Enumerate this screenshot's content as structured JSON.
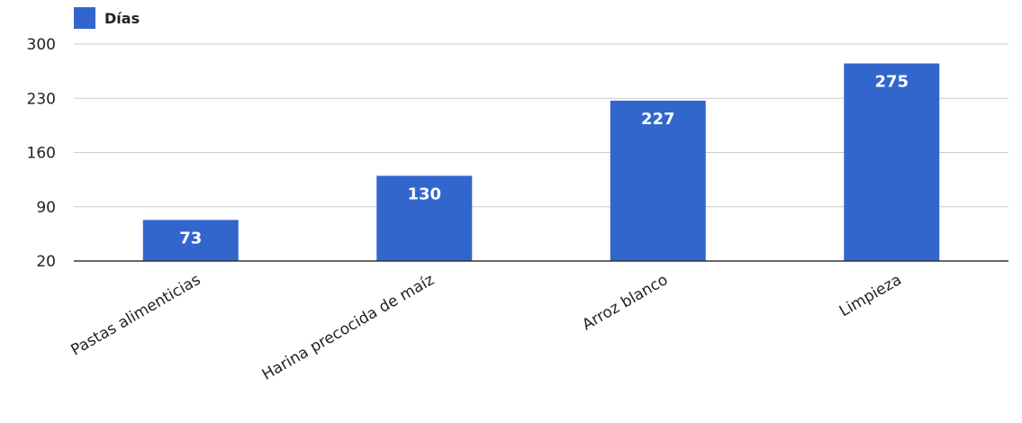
{
  "chart_data": {
    "type": "bar",
    "categories": [
      "Pastas alimenticias",
      "Harina precocida de maíz",
      "Arroz blanco",
      "Limpieza"
    ],
    "series": [
      {
        "name": "Días",
        "values": [
          73,
          130,
          227,
          275
        ],
        "color": "#3366cc"
      }
    ],
    "data_labels": [
      "73",
      "130",
      "227",
      "275"
    ],
    "yticks": [
      20,
      90,
      160,
      230,
      300
    ],
    "ylim": [
      20,
      300
    ],
    "grid": true,
    "legend": "top-left",
    "title": "",
    "xlabel": "",
    "ylabel": ""
  }
}
